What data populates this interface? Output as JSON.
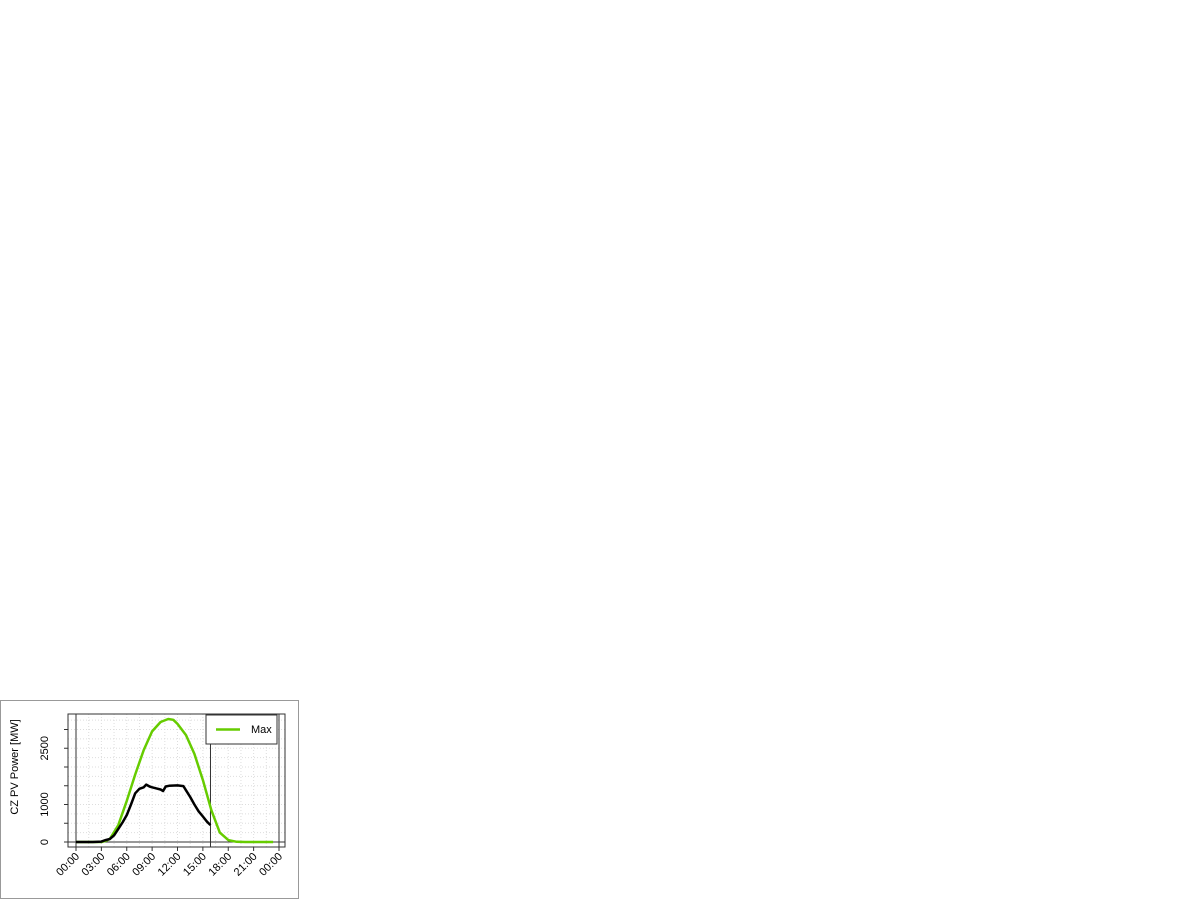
{
  "chart_data": {
    "type": "line",
    "title": "",
    "xlabel": "",
    "ylabel": "CZ PV Power [MW]",
    "xlim_hours": [
      -1,
      25
    ],
    "ylim": [
      -100,
      3450
    ],
    "x_tick_labels": [
      "00:00",
      "03:00",
      "06:00",
      "09:00",
      "12:00",
      "15:00",
      "18:00",
      "21:00",
      "00:00"
    ],
    "y_tick_values": [
      0,
      500,
      1000,
      1500,
      2000,
      2500,
      3000
    ],
    "y_tick_labels": [
      "0",
      "",
      "1000",
      "",
      "",
      "2500",
      ""
    ],
    "grid": true,
    "vertical_markers_hours": [
      0,
      15.9,
      24
    ],
    "legend": {
      "position": "top-right",
      "entries": [
        {
          "label": "Max",
          "color": "#66cc00"
        }
      ]
    },
    "series": [
      {
        "name": "Max",
        "color": "#66cc00",
        "x": [
          0,
          1,
          2,
          3,
          3.5,
          4,
          5,
          6,
          7,
          8,
          9,
          10,
          10.9,
          11.5,
          12,
          13,
          14,
          15,
          16,
          17,
          18,
          19,
          20,
          21,
          22,
          23.3
        ],
        "y": [
          0,
          0,
          0,
          0,
          30,
          80,
          450,
          1100,
          1800,
          2450,
          2950,
          3200,
          3280,
          3260,
          3150,
          2850,
          2350,
          1650,
          850,
          250,
          50,
          5,
          0,
          0,
          0,
          0
        ]
      },
      {
        "color": "#000000",
        "x": [
          0,
          1,
          2,
          3,
          3.5,
          4,
          4.5,
          5,
          5.5,
          6,
          6.5,
          7,
          7.5,
          8,
          8.3,
          8.7,
          9,
          9.5,
          10,
          10.3,
          10.6,
          11,
          12,
          12.7,
          13,
          13.5,
          14,
          14.5,
          15,
          15.5,
          15.9
        ],
        "y": [
          0,
          0,
          0,
          10,
          50,
          80,
          180,
          350,
          520,
          720,
          1000,
          1300,
          1420,
          1460,
          1530,
          1480,
          1460,
          1430,
          1400,
          1360,
          1480,
          1500,
          1510,
          1490,
          1380,
          1200,
          1000,
          820,
          680,
          540,
          450
        ]
      }
    ]
  }
}
